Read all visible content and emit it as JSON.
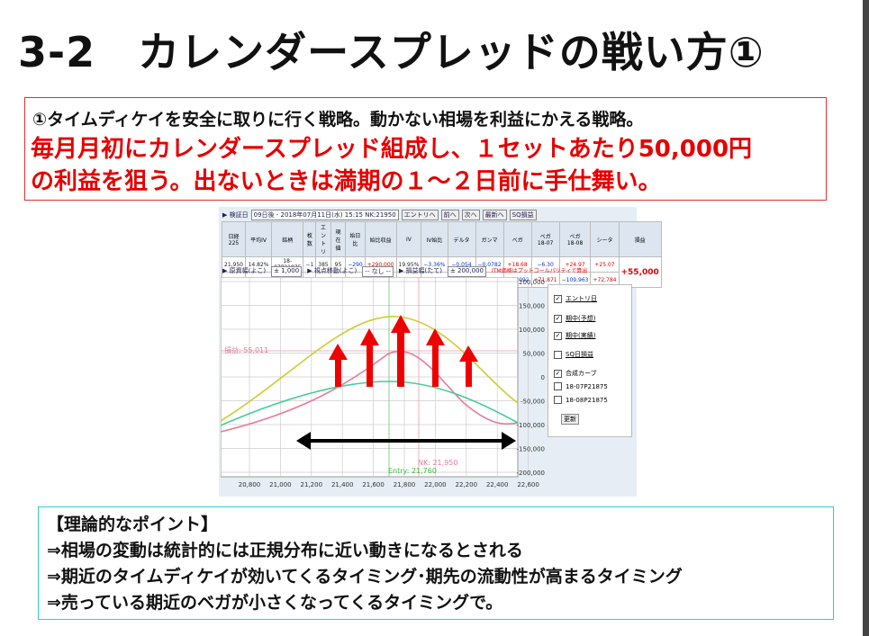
{
  "title": "3-2　カレンダースプレッドの戦い方①",
  "summary": {
    "line1": "①タイムディケイを安全に取りに行く戦略。動かない相場を利益にかえる戦略。",
    "line2": "毎月月初にカレンダースプレッド組成し、１セットあたり50,000円",
    "line3": "の利益を狙う。出ないときは満期の１～２日前に手仕舞い。"
  },
  "screenshot": {
    "toolbar": {
      "label": "▶ 検証日",
      "select": "09日後 - 2018年07月11日(水) 15:15 NK:21950",
      "buttons": [
        "エントリへ",
        "前へ",
        "次へ",
        "最新へ",
        "SQ損益"
      ]
    },
    "table": {
      "header": [
        "日経225",
        "平均IV",
        "銘柄",
        "枚数",
        "エントリ",
        "現在値",
        "始日比",
        "始比収益",
        "IV",
        "IV始比",
        "デルタ",
        "ガンマ",
        "ベガ",
        "ベガ\n18-07",
        "ベガ\n18-08",
        "シータ",
        "損益"
      ],
      "rows": [
        [
          "21,950",
          "14.82%",
          "18-07P21875",
          "−1",
          "385",
          "95",
          "−290",
          "+290,000",
          "19.95%",
          "−3.36%",
          "−0.054",
          "−0.0782",
          "+18.68",
          "−6.30",
          "+24.97",
          "+25.07"
        ],
        [
          "+190",
          "−4.89%",
          "18-08P21875",
          "1",
          "580",
          "345",
          "−235",
          "−235,000",
          "15.25%",
          "−4.01%",
          "+65,496",
          "−49,276",
          "−38,092",
          "+71,871",
          "−109,963",
          "+72,784"
        ]
      ],
      "total": "+55,000"
    },
    "controls": [
      {
        "label": "▶ 原資幅(よこ)",
        "select": "± 1,000"
      },
      {
        "label": "▶ 視点移動(よこ)",
        "select": "-- なし --"
      },
      {
        "label": "▶ 損益幅(たて)",
        "select": "± 200,000"
      }
    ],
    "note": "ITM価格はプットコールパリティで算出",
    "yticks": [
      "200,000",
      "150,000",
      "100,000",
      "50,000",
      "0",
      "-50,000",
      "-100,000",
      "-150,000",
      "-200,000"
    ],
    "xticks": [
      "20,800",
      "21,000",
      "21,200",
      "21,400",
      "21,600",
      "21,800",
      "22,000",
      "22,200",
      "22,400",
      "22,600"
    ],
    "pnl_label": "損益: 55,011",
    "nk_label": "NK: 21,950",
    "entry_label": "Entry: 21,760",
    "legend": [
      {
        "label": "エントリ日",
        "checked": true
      },
      {
        "label": "期中(予想)",
        "checked": true
      },
      {
        "label": "期中(実績)",
        "checked": true
      },
      {
        "label": "SQ日損益",
        "checked": false
      },
      {
        "label": "合成カーブ",
        "checked": true
      },
      {
        "label": "18-07P21875",
        "checked": false
      },
      {
        "label": "18-08P21875",
        "checked": false
      }
    ],
    "update_button": "更新"
  },
  "points": {
    "heading": "【理論的なポイント】",
    "items": [
      "⇒相場の変動は統計的には正規分布に近い動きになるとされる",
      "⇒期近のタイムディケイが効いてくるタイミング･期先の流動性が高まるタイミング",
      "⇒売っている期近のベガが小さくなってくるタイミングで。"
    ]
  }
}
